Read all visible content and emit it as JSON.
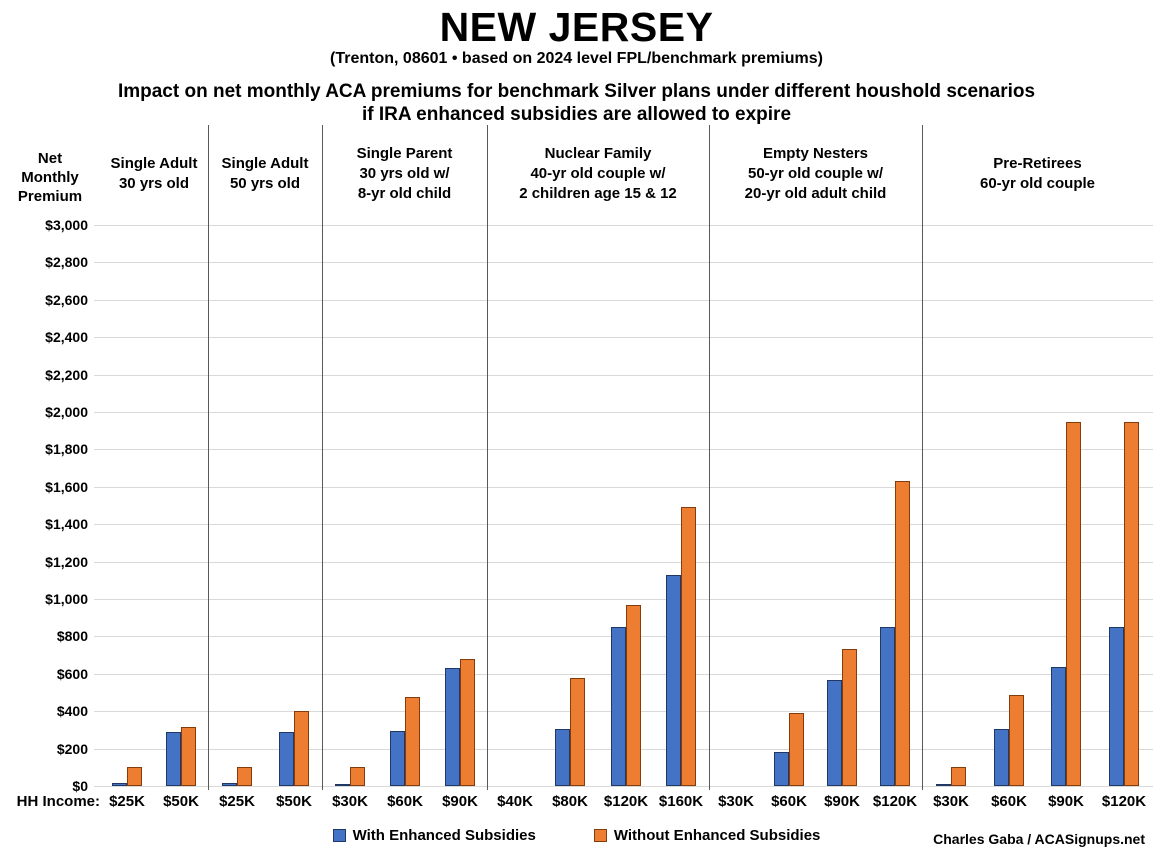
{
  "page": {
    "title": "NEW JERSEY",
    "subtitle": "(Trenton, 08601 • based on 2024 level FPL/benchmark premiums)",
    "heading_line1": "Impact on net monthly ACA premiums for benchmark Silver plans under different houshold scenarios",
    "heading_line2": "if IRA enhanced subsidies are allowed to expire",
    "credit": "Charles Gaba / ACASignups.net"
  },
  "axis": {
    "y_title": "Net\nMonthly\nPremium",
    "x_prefix": "HH Income:"
  },
  "legend": {
    "with_label": "With Enhanced Subsidies",
    "without_label": "Without Enhanced Subsidies"
  },
  "colors": {
    "with_fill": "#4472C4",
    "with_border": "#1F3864",
    "without_fill": "#ED7D31",
    "without_border": "#843C0C",
    "gridline": "#D9D9D9",
    "separator": "#595959"
  },
  "chart_data": {
    "type": "bar",
    "title": "NEW JERSEY — Impact on net monthly ACA premiums for benchmark Silver plans under different houshold scenarios if IRA enhanced subsidies are allowed to expire",
    "ylabel": "Net Monthly Premium",
    "xlabel": "HH Income",
    "ylim": [
      0,
      3000
    ],
    "ytick_step": 200,
    "grid": true,
    "legend_position": "bottom",
    "series_names": [
      "With Enhanced Subsidies",
      "Without Enhanced Subsidies"
    ],
    "groups": [
      {
        "label_lines": "Single Adult\n30 yrs old",
        "categories": [
          "$25K",
          "$50K"
        ],
        "with": [
          15,
          290
        ],
        "without": [
          100,
          315
        ]
      },
      {
        "label_lines": "Single Adult\n50 yrs old",
        "categories": [
          "$25K",
          "$50K"
        ],
        "with": [
          15,
          290
        ],
        "without": [
          100,
          400
        ]
      },
      {
        "label_lines": "Single Parent\n30 yrs old w/\n8-yr old child",
        "categories": [
          "$30K",
          "$60K",
          "$90K"
        ],
        "with": [
          5,
          295,
          630
        ],
        "without": [
          100,
          475,
          680
        ]
      },
      {
        "label_lines": "Nuclear Family\n40-yr old couple w/\n2 children age 15 & 12",
        "categories": [
          "$40K",
          "$80K",
          "$120K",
          "$160K"
        ],
        "with": [
          0,
          305,
          850,
          1130
        ],
        "without": [
          0,
          580,
          970,
          1490
        ]
      },
      {
        "label_lines": "Empty Nesters\n50-yr old couple w/\n20-yr old adult child",
        "categories": [
          "$30K",
          "$60K",
          "$90K",
          "$120K"
        ],
        "with": [
          0,
          180,
          565,
          850
        ],
        "without": [
          0,
          390,
          730,
          1630
        ]
      },
      {
        "label_lines": "Pre-Retirees\n60-yr old couple",
        "categories": [
          "$30K",
          "$60K",
          "$90K",
          "$120K"
        ],
        "with": [
          5,
          305,
          635,
          850
        ],
        "without": [
          100,
          485,
          1945,
          1945
        ]
      }
    ]
  }
}
